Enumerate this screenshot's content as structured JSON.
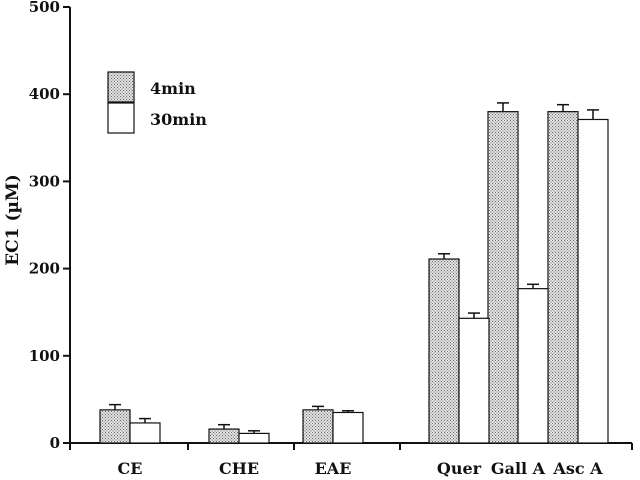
{
  "chart_data": {
    "type": "bar",
    "title": "",
    "xlabel": "",
    "ylabel": "EC1 (µM)",
    "ylim": [
      0,
      500
    ],
    "yticks": [
      0,
      100,
      200,
      300,
      400,
      500
    ],
    "categories": [
      "CE",
      "CHE",
      "EAE",
      "Quer",
      "Gall A",
      "Asc A"
    ],
    "series": [
      {
        "name": "4min",
        "values": [
          38,
          16,
          38,
          211,
          380,
          380
        ],
        "errors": [
          6,
          5,
          4,
          6,
          10,
          8
        ],
        "fill": "dotted-gray"
      },
      {
        "name": "30min",
        "values": [
          23,
          11,
          35,
          143,
          177,
          371
        ],
        "errors": [
          5,
          3,
          2,
          6,
          5,
          11
        ],
        "fill": "white"
      }
    ],
    "legend": "top-left",
    "grid": false,
    "colors": {
      "axis": "#111111",
      "bar_stroke": "#111111",
      "fill_4min": "#c8c8c8",
      "fill_30min": "#ffffff"
    }
  }
}
